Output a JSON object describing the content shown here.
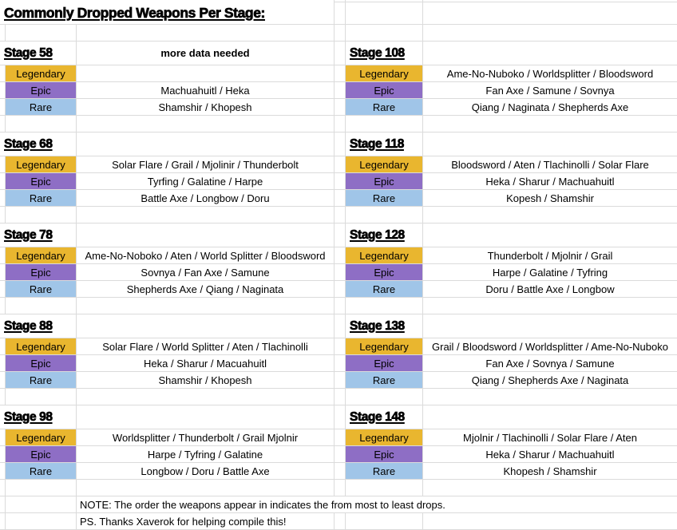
{
  "title": "Commonly Dropped Weapons Per Stage:",
  "rarities": [
    "Legendary",
    "Epic",
    "Rare"
  ],
  "colors": {
    "legendary": "#E9B62F",
    "epic": "#8E6EC5",
    "rare": "#A0C5E8",
    "gridline": "#DBDBDB"
  },
  "pairs": [
    {
      "left": {
        "name": "Stage 58",
        "note": "more data needed",
        "legendary": "",
        "epic": "Machuahuitl / Heka",
        "rare": "Shamshir / Khopesh"
      },
      "right": {
        "name": "Stage 108",
        "legendary": "Ame-No-Nuboko / Worldsplitter / Bloodsword",
        "epic": "Fan Axe / Samune / Sovnya",
        "rare": "Qiang / Naginata / Shepherds Axe"
      }
    },
    {
      "left": {
        "name": "Stage 68",
        "legendary": "Solar Flare / Grail / Mjolinir / Thunderbolt",
        "epic": "Tyrfing / Galatine / Harpe",
        "rare": "Battle Axe / Longbow / Doru"
      },
      "right": {
        "name": "Stage 118",
        "legendary": "Bloodsword / Aten / Tlachinolli / Solar Flare",
        "epic": "Heka / Sharur / Machuahuitl",
        "rare": "Kopesh / Shamshir"
      }
    },
    {
      "left": {
        "name": "Stage 78",
        "legendary": "Ame-No-Noboko / Aten / World Splitter / Bloodsword",
        "epic": "Sovnya / Fan Axe / Samune",
        "rare": "Shepherds Axe / Qiang / Naginata"
      },
      "right": {
        "name": "Stage 128",
        "legendary": "Thunderbolt / Mjolnir / Grail",
        "epic": "Harpe / Galatine / Tyfring",
        "rare": "Doru / Battle Axe / Longbow"
      }
    },
    {
      "left": {
        "name": "Stage 88",
        "legendary": "Solar Flare / World Splitter / Aten / Tlachinolli",
        "epic": "Heka / Sharur / Macuahuitl",
        "rare": "Shamshir / Khopesh"
      },
      "right": {
        "name": "Stage 138",
        "legendary": "Grail / Bloodsword / Worldsplitter / Ame-No-Nuboko",
        "epic": "Fan Axe / Sovnya / Samune",
        "rare": "Qiang / Shepherds Axe / Naginata"
      }
    },
    {
      "left": {
        "name": "Stage 98",
        "legendary": "Worldsplitter / Thunderbolt / Grail Mjolnir",
        "epic": "Harpe / Tyfring / Galatine",
        "rare": "Longbow / Doru / Battle Axe"
      },
      "right": {
        "name": "Stage 148",
        "legendary": "Mjolnir / Tlachinolli / Solar Flare / Aten",
        "epic": "Heka / Sharur / Machuahuitl",
        "rare": "Khopesh / Shamshir"
      }
    }
  ],
  "footer": {
    "note": "NOTE: The order the weapons appear in indicates the from most to least drops.",
    "ps": "PS. Thanks Xaverok for helping compile this!"
  }
}
